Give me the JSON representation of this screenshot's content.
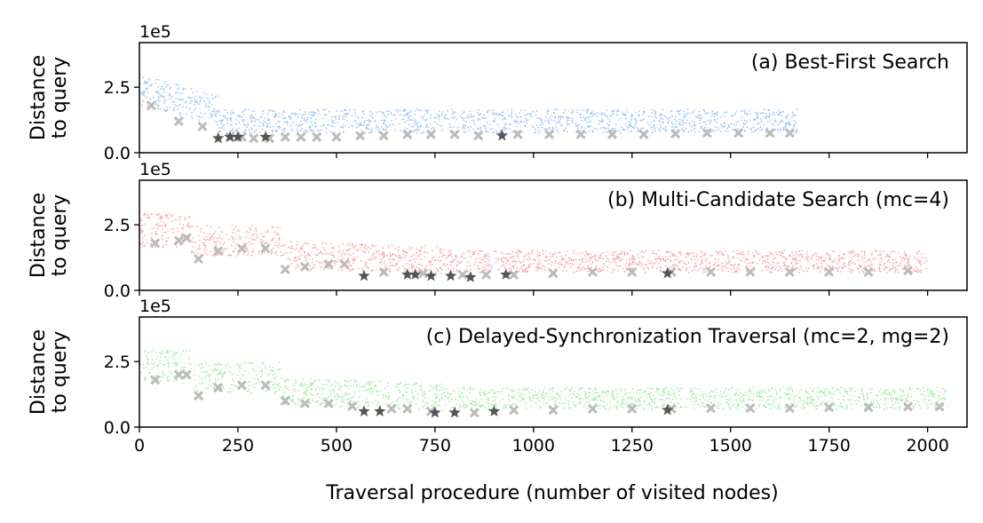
{
  "chart_data": [
    {
      "type": "scatter",
      "title": "(a) Best-First Search",
      "ylabel": "Distance\nto query",
      "y_offset_label": "1e5",
      "xlim": [
        0,
        2100
      ],
      "ylim": [
        0,
        4.2
      ],
      "yticks": [
        0,
        2.5
      ],
      "ytick_labels": [
        "0.0",
        "2.5"
      ],
      "x_extent": 1670,
      "colors": {
        "dots": "#9ec6f5",
        "cross": "#bbbbbb",
        "star": "#555555"
      },
      "crosses": [
        [
          30,
          1.8
        ],
        [
          100,
          1.2
        ],
        [
          160,
          1.0
        ],
        [
          230,
          0.6
        ],
        [
          260,
          0.6
        ],
        [
          290,
          0.55
        ],
        [
          330,
          0.55
        ],
        [
          370,
          0.6
        ],
        [
          410,
          0.6
        ],
        [
          450,
          0.6
        ],
        [
          500,
          0.6
        ],
        [
          560,
          0.65
        ],
        [
          620,
          0.65
        ],
        [
          680,
          0.7
        ],
        [
          740,
          0.7
        ],
        [
          800,
          0.7
        ],
        [
          860,
          0.65
        ],
        [
          960,
          0.7
        ],
        [
          1040,
          0.7
        ],
        [
          1120,
          0.7
        ],
        [
          1200,
          0.7
        ],
        [
          1280,
          0.7
        ],
        [
          1360,
          0.72
        ],
        [
          1440,
          0.75
        ],
        [
          1520,
          0.75
        ],
        [
          1600,
          0.75
        ],
        [
          1650,
          0.75
        ]
      ],
      "stars": [
        [
          200,
          0.55
        ],
        [
          230,
          0.6
        ],
        [
          250,
          0.6
        ],
        [
          320,
          0.6
        ],
        [
          920,
          0.65
        ]
      ]
    },
    {
      "type": "scatter",
      "title": "(b) Multi-Candidate Search (mc=4)",
      "ylabel": "Distance\nto query",
      "y_offset_label": "1e5",
      "xlim": [
        0,
        2100
      ],
      "ylim": [
        0,
        4.2
      ],
      "yticks": [
        0,
        2.5
      ],
      "ytick_labels": [
        "0.0",
        "2.5"
      ],
      "x_extent": 2000,
      "colors": {
        "dots": "#f9a8a8",
        "cross": "#bbbbbb",
        "star": "#555555"
      },
      "crosses": [
        [
          40,
          1.8
        ],
        [
          100,
          1.9
        ],
        [
          120,
          2.0
        ],
        [
          150,
          1.2
        ],
        [
          200,
          1.5
        ],
        [
          260,
          1.6
        ],
        [
          320,
          1.6
        ],
        [
          370,
          0.8
        ],
        [
          420,
          0.9
        ],
        [
          480,
          1.0
        ],
        [
          520,
          1.0
        ],
        [
          620,
          0.7
        ],
        [
          720,
          0.65
        ],
        [
          820,
          0.6
        ],
        [
          880,
          0.6
        ],
        [
          950,
          0.6
        ],
        [
          1050,
          0.65
        ],
        [
          1150,
          0.7
        ],
        [
          1250,
          0.7
        ],
        [
          1350,
          0.7
        ],
        [
          1450,
          0.7
        ],
        [
          1550,
          0.7
        ],
        [
          1650,
          0.7
        ],
        [
          1750,
          0.7
        ],
        [
          1850,
          0.7
        ],
        [
          1950,
          0.75
        ]
      ],
      "stars": [
        [
          570,
          0.55
        ],
        [
          680,
          0.6
        ],
        [
          700,
          0.6
        ],
        [
          740,
          0.55
        ],
        [
          790,
          0.55
        ],
        [
          840,
          0.5
        ],
        [
          930,
          0.6
        ],
        [
          1340,
          0.65
        ]
      ]
    },
    {
      "type": "scatter",
      "title": "(c) Delayed-Synchronization Traversal (mc=2, mg=2)",
      "ylabel": "Distance\nto query",
      "y_offset_label": "1e5",
      "xlim": [
        0,
        2100
      ],
      "ylim": [
        0,
        4.2
      ],
      "yticks": [
        0,
        2.5
      ],
      "ytick_labels": [
        "0.0",
        "2.5"
      ],
      "x_extent": 2050,
      "colors": {
        "dots": "#a8ecab",
        "cross": "#bbbbbb",
        "star": "#555555"
      },
      "crosses": [
        [
          40,
          1.8
        ],
        [
          100,
          2.0
        ],
        [
          120,
          2.0
        ],
        [
          150,
          1.2
        ],
        [
          200,
          1.5
        ],
        [
          260,
          1.6
        ],
        [
          320,
          1.6
        ],
        [
          370,
          1.0
        ],
        [
          420,
          0.9
        ],
        [
          480,
          0.9
        ],
        [
          540,
          0.8
        ],
        [
          640,
          0.7
        ],
        [
          680,
          0.7
        ],
        [
          740,
          0.6
        ],
        [
          850,
          0.55
        ],
        [
          950,
          0.65
        ],
        [
          1050,
          0.65
        ],
        [
          1150,
          0.7
        ],
        [
          1250,
          0.7
        ],
        [
          1350,
          0.7
        ],
        [
          1450,
          0.72
        ],
        [
          1550,
          0.72
        ],
        [
          1650,
          0.72
        ],
        [
          1750,
          0.75
        ],
        [
          1850,
          0.75
        ],
        [
          1950,
          0.78
        ],
        [
          2030,
          0.78
        ]
      ],
      "stars": [
        [
          570,
          0.6
        ],
        [
          610,
          0.6
        ],
        [
          750,
          0.55
        ],
        [
          800,
          0.55
        ],
        [
          900,
          0.6
        ],
        [
          1340,
          0.65
        ]
      ]
    }
  ],
  "xlabel": "Traversal procedure (number of visited nodes)",
  "xticks": [
    0,
    250,
    500,
    750,
    1000,
    1250,
    1500,
    1750,
    2000
  ]
}
